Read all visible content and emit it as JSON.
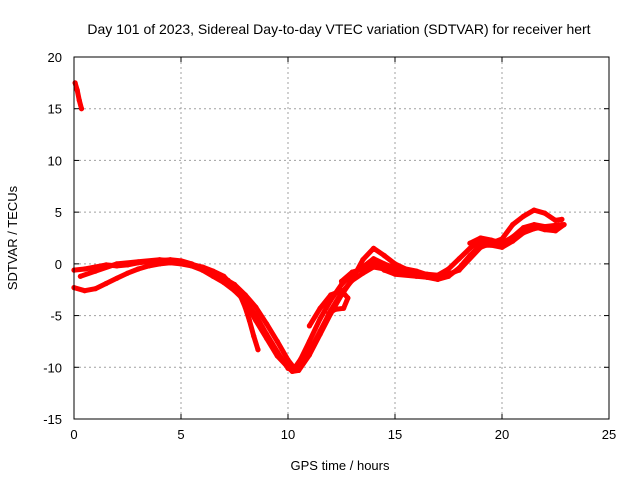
{
  "chart_data": {
    "type": "scatter",
    "title": "Day 101 of 2023, Sidereal Day-to-day VTEC variation (SDTVAR) for receiver hert",
    "xlabel": "GPS time / hours",
    "ylabel": "SDTVAR / TECUs",
    "xlim": [
      0,
      25
    ],
    "ylim": [
      -15,
      20
    ],
    "xticks": [
      0,
      5,
      10,
      15,
      20,
      25
    ],
    "yticks": [
      -15,
      -10,
      -5,
      0,
      5,
      10,
      15,
      20
    ],
    "grid": true,
    "series": [
      {
        "name": "SDTVAR",
        "color": "#ff0000",
        "tracks": [
          [
            [
              0.05,
              17.5
            ],
            [
              0.15,
              16.8
            ],
            [
              0.25,
              15.8
            ],
            [
              0.35,
              15.0
            ]
          ],
          [
            [
              0.0,
              -0.6
            ],
            [
              0.5,
              -0.5
            ],
            [
              1.0,
              -0.3
            ],
            [
              1.5,
              -0.1
            ],
            [
              2.0,
              -0.2
            ],
            [
              2.5,
              -0.1
            ],
            [
              3.0,
              0.1
            ],
            [
              3.5,
              0.2
            ],
            [
              4.0,
              0.3
            ],
            [
              4.5,
              0.4
            ],
            [
              5.0,
              0.3
            ],
            [
              5.5,
              0.0
            ],
            [
              6.0,
              -0.5
            ],
            [
              6.5,
              -1.0
            ],
            [
              7.0,
              -1.4
            ],
            [
              7.5,
              -2.0
            ],
            [
              8.0,
              -3.0
            ],
            [
              8.5,
              -4.2
            ],
            [
              9.0,
              -5.8
            ],
            [
              9.5,
              -7.5
            ],
            [
              10.0,
              -9.3
            ],
            [
              10.3,
              -10.1
            ],
            [
              10.6,
              -9.2
            ],
            [
              11.0,
              -7.5
            ],
            [
              11.5,
              -5.3
            ],
            [
              12.0,
              -3.5
            ],
            [
              12.5,
              -2.0
            ],
            [
              13.0,
              -1.0
            ],
            [
              13.5,
              -0.3
            ],
            [
              14.0,
              0.5
            ],
            [
              14.5,
              0.0
            ],
            [
              15.0,
              -0.4
            ],
            [
              15.5,
              -0.7
            ],
            [
              16.0,
              -0.9
            ],
            [
              16.5,
              -1.0
            ],
            [
              17.0,
              -1.1
            ],
            [
              17.5,
              -0.5
            ],
            [
              18.0,
              0.5
            ],
            [
              18.5,
              1.5
            ],
            [
              19.0,
              2.3
            ],
            [
              19.5,
              2.0
            ],
            [
              20.0,
              1.9
            ],
            [
              20.5,
              2.6
            ],
            [
              21.0,
              3.5
            ],
            [
              21.5,
              3.8
            ],
            [
              22.0,
              3.6
            ],
            [
              22.5,
              3.5
            ]
          ],
          [
            [
              0.0,
              -2.3
            ],
            [
              0.5,
              -2.6
            ],
            [
              1.0,
              -2.4
            ],
            [
              1.5,
              -1.9
            ],
            [
              2.0,
              -1.4
            ],
            [
              2.5,
              -0.9
            ],
            [
              3.0,
              -0.5
            ],
            [
              3.5,
              -0.2
            ],
            [
              4.0,
              0.0
            ],
            [
              4.5,
              0.1
            ],
            [
              5.0,
              0.0
            ],
            [
              5.5,
              -0.2
            ],
            [
              6.0,
              -0.6
            ],
            [
              6.5,
              -1.2
            ],
            [
              7.0,
              -1.8
            ],
            [
              7.5,
              -2.6
            ],
            [
              8.0,
              -3.6
            ],
            [
              8.5,
              -5.0
            ],
            [
              9.0,
              -6.8
            ],
            [
              9.5,
              -8.5
            ],
            [
              10.0,
              -10.1
            ],
            [
              10.3,
              -10.3
            ],
            [
              10.6,
              -9.8
            ],
            [
              11.0,
              -8.5
            ],
            [
              11.5,
              -6.5
            ],
            [
              12.0,
              -4.5
            ],
            [
              12.5,
              -2.8
            ],
            [
              13.0,
              -1.6
            ],
            [
              13.5,
              -0.9
            ],
            [
              14.0,
              -0.3
            ],
            [
              14.5,
              -0.5
            ],
            [
              15.0,
              -0.8
            ],
            [
              15.5,
              -1.0
            ],
            [
              16.0,
              -1.1
            ],
            [
              16.5,
              -1.3
            ],
            [
              17.0,
              -1.5
            ],
            [
              17.5,
              -1.2
            ],
            [
              18.0,
              -0.4
            ],
            [
              18.5,
              0.8
            ],
            [
              19.0,
              1.8
            ],
            [
              19.5,
              1.8
            ],
            [
              20.0,
              1.6
            ],
            [
              20.5,
              2.2
            ],
            [
              21.0,
              3.0
            ],
            [
              21.5,
              3.4
            ],
            [
              22.0,
              3.6
            ],
            [
              22.8,
              3.8
            ]
          ],
          [
            [
              0.3,
              -1.2
            ],
            [
              1.0,
              -0.7
            ],
            [
              2.0,
              0.0
            ],
            [
              3.0,
              0.2
            ],
            [
              4.0,
              0.4
            ],
            [
              5.0,
              0.2
            ],
            [
              6.0,
              -0.3
            ],
            [
              6.5,
              -0.7
            ],
            [
              7.0,
              -1.2
            ],
            [
              7.5,
              -2.3
            ],
            [
              8.0,
              -3.7
            ],
            [
              8.5,
              -5.5
            ],
            [
              9.0,
              -7.2
            ],
            [
              9.5,
              -8.9
            ],
            [
              10.0,
              -10.0
            ],
            [
              10.2,
              -10.4
            ],
            [
              10.5,
              -10.3
            ],
            [
              11.0,
              -8.8
            ],
            [
              11.5,
              -6.8
            ],
            [
              12.0,
              -4.8
            ],
            [
              12.5,
              -3.0
            ],
            [
              13.0,
              -1.5
            ],
            [
              13.5,
              0.4
            ],
            [
              14.0,
              1.5
            ],
            [
              14.5,
              0.8
            ],
            [
              15.0,
              0.0
            ],
            [
              15.5,
              -0.5
            ],
            [
              16.0,
              -0.7
            ],
            [
              17.0,
              -1.4
            ],
            [
              18.0,
              -0.6
            ],
            [
              19.0,
              1.6
            ],
            [
              20.0,
              2.4
            ],
            [
              20.5,
              3.8
            ],
            [
              21.0,
              4.6
            ],
            [
              21.5,
              5.2
            ],
            [
              22.0,
              4.9
            ],
            [
              22.5,
              4.2
            ],
            [
              22.8,
              4.3
            ]
          ],
          [
            [
              7.2,
              -1.6
            ],
            [
              7.6,
              -2.6
            ],
            [
              8.0,
              -3.6
            ],
            [
              8.4,
              -5.0
            ],
            [
              8.8,
              -6.4
            ],
            [
              9.2,
              -7.8
            ],
            [
              9.6,
              -9.0
            ],
            [
              10.0,
              -9.9
            ],
            [
              10.4,
              -10.2
            ]
          ],
          [
            [
              7.8,
              -3.2
            ],
            [
              8.0,
              -4.2
            ],
            [
              8.2,
              -5.5
            ],
            [
              8.4,
              -7.0
            ],
            [
              8.6,
              -8.3
            ]
          ],
          [
            [
              11.0,
              -6.0
            ],
            [
              11.5,
              -4.3
            ],
            [
              12.0,
              -3.0
            ],
            [
              12.5,
              -2.6
            ],
            [
              12.8,
              -3.3
            ],
            [
              12.6,
              -4.3
            ],
            [
              12.2,
              -4.4
            ],
            [
              11.9,
              -4.8
            ]
          ],
          [
            [
              12.5,
              -1.7
            ],
            [
              13.0,
              -0.8
            ],
            [
              13.5,
              -0.5
            ],
            [
              14.0,
              0.2
            ],
            [
              14.5,
              -0.6
            ],
            [
              15.0,
              -1.0
            ],
            [
              16.0,
              -1.2
            ],
            [
              17.0,
              -1.4
            ]
          ],
          [
            [
              18.5,
              2.0
            ],
            [
              19.0,
              2.5
            ],
            [
              19.5,
              2.3
            ],
            [
              20.0,
              2.0
            ],
            [
              20.5,
              2.6
            ],
            [
              21.0,
              3.3
            ],
            [
              21.5,
              3.6
            ],
            [
              22.0,
              3.3
            ],
            [
              22.5,
              3.2
            ],
            [
              22.9,
              3.8
            ]
          ]
        ]
      }
    ]
  }
}
